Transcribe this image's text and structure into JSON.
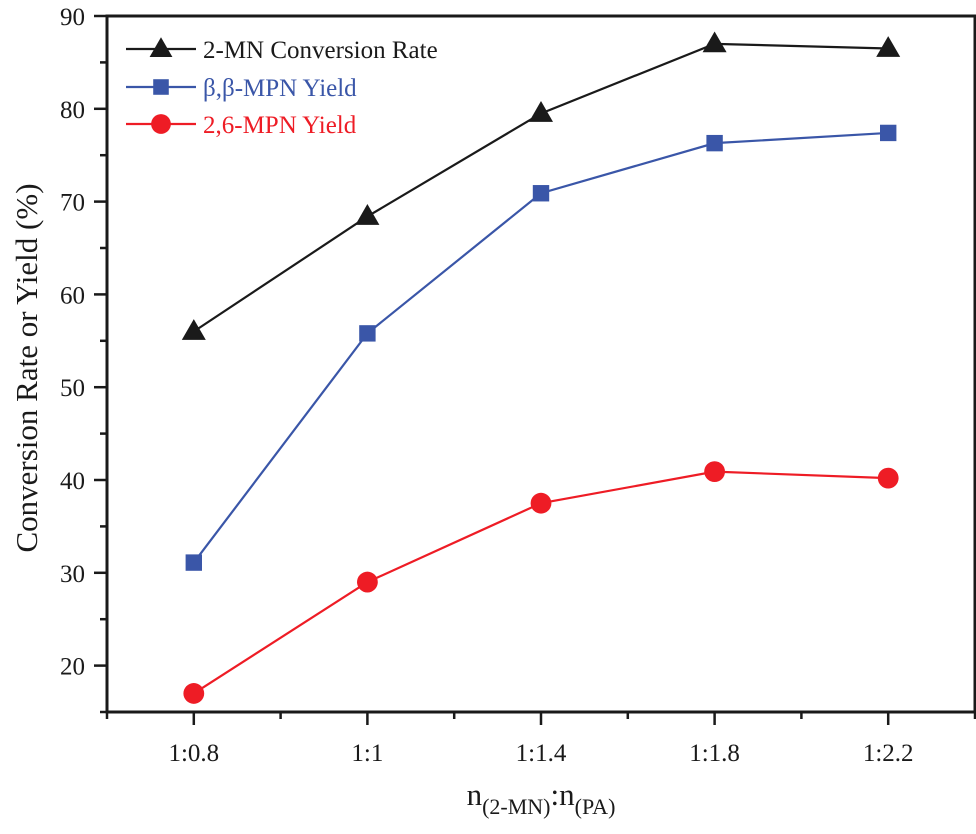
{
  "chart_data": {
    "type": "line",
    "title": "",
    "xlabel": {
      "main": "n",
      "sub1": "(2-MN)",
      "sep": ":",
      "main2": "n",
      "sub2": "(PA)",
      "full": "n(2-MN):n(PA)"
    },
    "ylabel": "Conversion Rate or Yield (%)",
    "categories": [
      "1:0.8",
      "1:1",
      "1:1.4",
      "1:1.8",
      "1:2.2"
    ],
    "ylim": [
      15,
      90
    ],
    "yticks": [
      20,
      30,
      40,
      50,
      60,
      70,
      80,
      90
    ],
    "yminor_ticks": [
      15,
      25,
      35,
      45,
      55,
      65,
      75,
      85
    ],
    "grid": false,
    "legend": {
      "position": "top-left"
    },
    "series": [
      {
        "name": "2-MN Conversion Rate",
        "color": "#1a1a1a",
        "marker": "triangle",
        "values": [
          56.0,
          68.4,
          79.5,
          87.0,
          86.5
        ]
      },
      {
        "name": "β,β-MPN Yield",
        "color": "#3a56a8",
        "marker": "square",
        "values": [
          31.1,
          55.8,
          70.9,
          76.3,
          77.4
        ]
      },
      {
        "name": "2,6-MPN Yield",
        "color": "#ee1c25",
        "marker": "circle",
        "values": [
          17.0,
          29.0,
          37.5,
          40.9,
          40.2
        ]
      }
    ]
  }
}
